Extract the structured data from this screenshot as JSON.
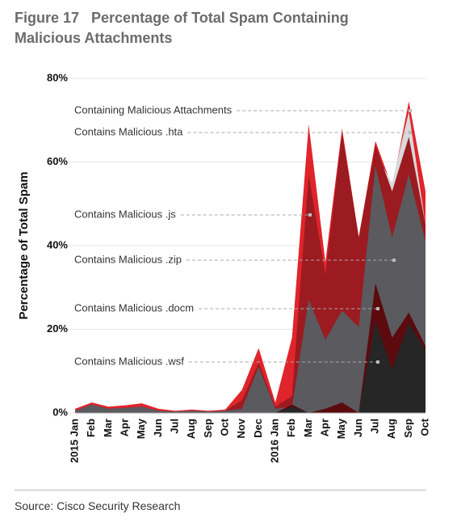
{
  "chart_data": {
    "type": "area",
    "title": "Figure 17   Percentage of Total Spam Containing Malicious Attachments",
    "y_label": "Percentage of Total Spam",
    "source": "Source: Cisco Security Research",
    "categories": [
      "2015 Jan",
      "Feb",
      "Mar",
      "Apr",
      "May",
      "Jun",
      "Jul",
      "Aug",
      "Sep",
      "Oct",
      "Nov",
      "Dec",
      "2016 Jan",
      "Feb",
      "Mar",
      "Apr",
      "May",
      "Jun",
      "Jul",
      "Aug",
      "Sep",
      "Oct"
    ],
    "ylim": [
      0,
      80
    ],
    "yticks": [
      {
        "value": 0,
        "label": "0%"
      },
      {
        "value": 20,
        "label": "20%"
      },
      {
        "value": 40,
        "label": "40%"
      },
      {
        "value": 60,
        "label": "60%"
      },
      {
        "value": 80,
        "label": "80%"
      }
    ],
    "grid": true,
    "series": [
      {
        "name": "Containing Malicious Attachments",
        "color": "#e0242b",
        "values": [
          1,
          2.5,
          1.5,
          1.8,
          2.3,
          1,
          0.5,
          0.8,
          0.5,
          0.8,
          5.5,
          15.5,
          2.5,
          18,
          69,
          36,
          68,
          42,
          65,
          54,
          74.5,
          53
        ]
      },
      {
        "name": "Contains Malicious .hta",
        "color": "#d9d9d9",
        "values": [
          0,
          0,
          0,
          0,
          0,
          0,
          0,
          0,
          0,
          0,
          0,
          0,
          0,
          0,
          0,
          0,
          0,
          0,
          62,
          55,
          72,
          45
        ]
      },
      {
        "name": "Contains Malicious .js",
        "color": "#9b1b20",
        "values": [
          0.5,
          2,
          1,
          1.2,
          1.5,
          0.5,
          0.3,
          0.5,
          0.3,
          0.5,
          3,
          12,
          1.5,
          4,
          57,
          33,
          67,
          42,
          64,
          53,
          66,
          45
        ]
      },
      {
        "name": "Contains Malicious .zip",
        "color": "#5a5a5f",
        "values": [
          0.5,
          2,
          1,
          1.2,
          1.5,
          0.5,
          0.3,
          0.5,
          0.3,
          0.5,
          1,
          11,
          1,
          1.5,
          27,
          17.5,
          24.5,
          20.5,
          59,
          42,
          57,
          41
        ]
      },
      {
        "name": "Contains Malicious .docm",
        "color": "#5c0a0e",
        "values": [
          0,
          0,
          0,
          0,
          0,
          0,
          0,
          0,
          0,
          0,
          0,
          0,
          0,
          2,
          0,
          1,
          2.5,
          0,
          31,
          18,
          24,
          16
        ]
      },
      {
        "name": "Contains Malicious .wsf",
        "color": "#262626",
        "values": [
          0,
          0,
          0,
          0,
          0,
          0,
          0,
          0,
          0,
          0,
          0,
          0,
          0,
          1.5,
          0,
          0,
          0,
          0,
          22,
          10.5,
          21.5,
          15
        ]
      }
    ]
  }
}
